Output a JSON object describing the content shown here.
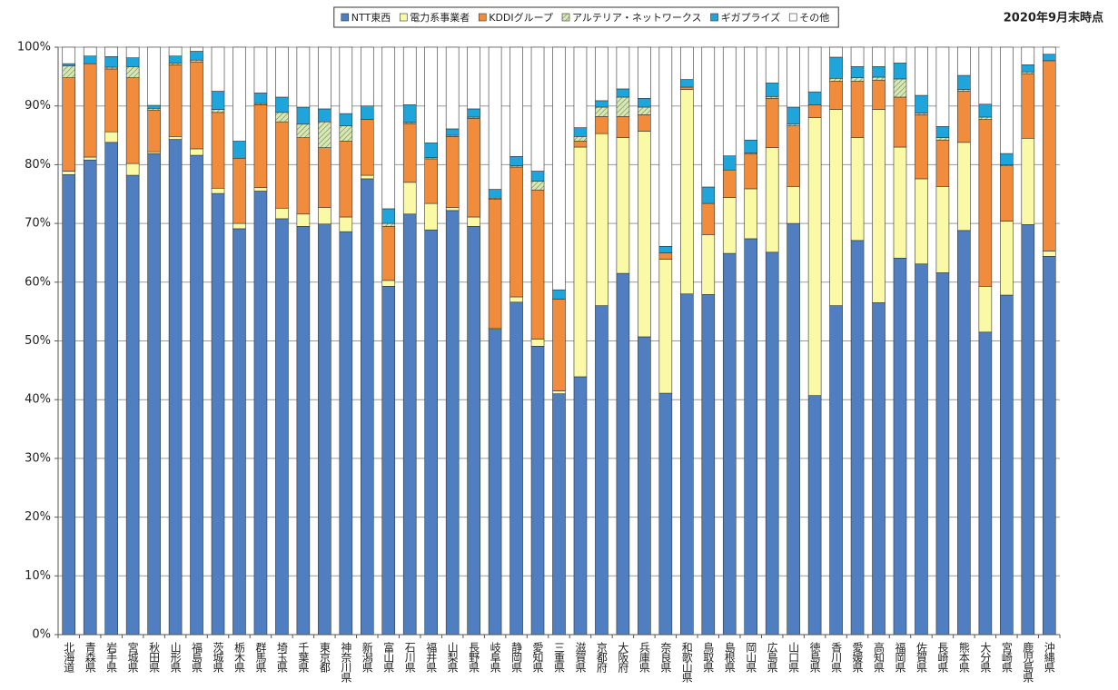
{
  "chart_data": {
    "type": "stacked_bar",
    "annotation": "2020年9月末時点",
    "categories": [
      "北海道",
      "青森県",
      "岩手県",
      "宮城県",
      "秋田県",
      "山形県",
      "福島県",
      "茨城県",
      "栃木県",
      "群馬県",
      "埼玉県",
      "千葉県",
      "東京都",
      "神奈川県",
      "新潟県",
      "富山県",
      "石川県",
      "福井県",
      "山梨県",
      "長野県",
      "岐阜県",
      "静岡県",
      "愛知県",
      "三重県",
      "滋賀県",
      "京都府",
      "大阪府",
      "兵庫県",
      "奈良県",
      "和歌山県",
      "鳥取県",
      "島根県",
      "岡山県",
      "広島県",
      "山口県",
      "徳島県",
      "香川県",
      "愛媛県",
      "高知県",
      "福岡県",
      "佐賀県",
      "長崎県",
      "熊本県",
      "大分県",
      "宮崎県",
      "鹿児島県",
      "沖縄県"
    ],
    "series": [
      {
        "name": "NTT東西",
        "color": "#4f7fc0",
        "values": [
          78.3,
          80.8,
          83.8,
          78.2,
          81.9,
          84.3,
          81.6,
          75.1,
          69.1,
          75.5,
          70.8,
          69.5,
          69.9,
          68.6,
          77.6,
          59.3,
          71.6,
          68.9,
          72.2,
          69.5,
          52.0,
          56.6,
          49.1,
          41.0,
          43.9,
          56.0,
          61.5,
          50.7,
          41.1,
          58.0,
          57.9,
          64.9,
          67.4,
          65.1,
          70.0,
          40.7,
          56.0,
          67.1,
          56.5,
          64.1,
          63.1,
          61.6,
          68.8,
          51.5,
          57.8,
          69.8,
          64.4
        ]
      },
      {
        "name": "電力系事業者",
        "color": "#fafaa6",
        "values": [
          0.6,
          0.5,
          1.8,
          2.0,
          0.3,
          0.5,
          1.1,
          0.9,
          0.9,
          0.6,
          1.8,
          2.1,
          2.8,
          2.5,
          0.6,
          1.0,
          5.4,
          4.5,
          0.5,
          1.6,
          0.2,
          0.9,
          1.2,
          0.5,
          39.1,
          29.3,
          23.1,
          35.0,
          22.8,
          34.8,
          10.2,
          9.5,
          8.5,
          17.8,
          6.3,
          47.3,
          33.4,
          17.5,
          32.9,
          18.9,
          14.5,
          14.7,
          15.0,
          7.8,
          12.6,
          14.7,
          0.9
        ]
      },
      {
        "name": "KDDIグループ",
        "color": "#f08c3c",
        "values": [
          15.9,
          15.9,
          10.7,
          14.6,
          7.1,
          12.2,
          14.8,
          12.9,
          11.1,
          14.1,
          14.7,
          13.0,
          10.2,
          12.9,
          9.5,
          9.2,
          10.0,
          7.6,
          12.1,
          16.8,
          21.9,
          22.1,
          25.4,
          15.6,
          1.0,
          2.9,
          3.6,
          2.8,
          1.1,
          0.4,
          5.3,
          4.7,
          5.9,
          8.4,
          10.3,
          2.2,
          4.8,
          9.6,
          5.0,
          8.5,
          10.9,
          7.9,
          8.7,
          28.4,
          9.4,
          11.0,
          32.4
        ]
      },
      {
        "name": "アルテリア・ネットワークス",
        "color": "#d8e6b8",
        "hatch": true,
        "values": [
          2.0,
          0,
          0.3,
          1.9,
          0.3,
          0.3,
          0.3,
          0.5,
          0,
          0.2,
          1.6,
          2.3,
          4.4,
          2.6,
          0,
          0.5,
          0.2,
          0.2,
          0.2,
          0.2,
          0.2,
          0.2,
          1.5,
          0,
          0.8,
          1.6,
          3.3,
          1.3,
          0,
          0,
          0,
          0,
          0.2,
          0.3,
          0.3,
          0,
          0.5,
          0.6,
          0.5,
          3.1,
          0.3,
          0.4,
          0.3,
          0.4,
          0.2,
          0.3,
          0
        ]
      },
      {
        "name": "ギガプライズ",
        "color": "#1ea5dc",
        "values": [
          0.4,
          1.3,
          1.8,
          1.5,
          0.5,
          1.2,
          1.5,
          3.1,
          2.9,
          1.8,
          2.6,
          2.9,
          2.2,
          2.1,
          2.3,
          2.5,
          3.0,
          2.5,
          1.1,
          1.4,
          1.5,
          1.6,
          1.7,
          1.6,
          1.5,
          1.1,
          1.4,
          1.5,
          1.1,
          1.3,
          2.8,
          2.4,
          2.2,
          2.3,
          2.9,
          2.2,
          3.6,
          1.9,
          1.8,
          2.7,
          3.0,
          1.9,
          2.4,
          2.2,
          1.9,
          1.2,
          1.1
        ]
      },
      {
        "name": "その他",
        "color": "#ffffff",
        "values": [
          2.8,
          1.5,
          1.6,
          1.8,
          9.9,
          1.5,
          0.7,
          7.5,
          16.0,
          7.8,
          8.5,
          10.2,
          10.5,
          11.3,
          10.0,
          27.5,
          9.8,
          16.3,
          13.9,
          10.5,
          24.2,
          18.6,
          21.1,
          41.3,
          13.7,
          9.1,
          7.1,
          8.7,
          33.9,
          5.5,
          23.8,
          18.5,
          15.8,
          6.1,
          10.2,
          7.6,
          1.7,
          3.3,
          3.3,
          2.7,
          8.2,
          13.5,
          4.8,
          9.7,
          18.1,
          3.0,
          1.2
        ]
      }
    ],
    "ylim": [
      0,
      100
    ],
    "yticks": [
      {
        "value": 0,
        "label": "0%"
      },
      {
        "value": 10,
        "label": "10%"
      },
      {
        "value": 20,
        "label": "20%"
      },
      {
        "value": 30,
        "label": "30%"
      },
      {
        "value": 40,
        "label": "40%"
      },
      {
        "value": 50,
        "label": "50%"
      },
      {
        "value": 60,
        "label": "60%"
      },
      {
        "value": 70,
        "label": "70%"
      },
      {
        "value": 80,
        "label": "80%"
      },
      {
        "value": 90,
        "label": "90%"
      },
      {
        "value": 100,
        "label": "100%"
      }
    ],
    "grid": true,
    "legend": "top"
  }
}
